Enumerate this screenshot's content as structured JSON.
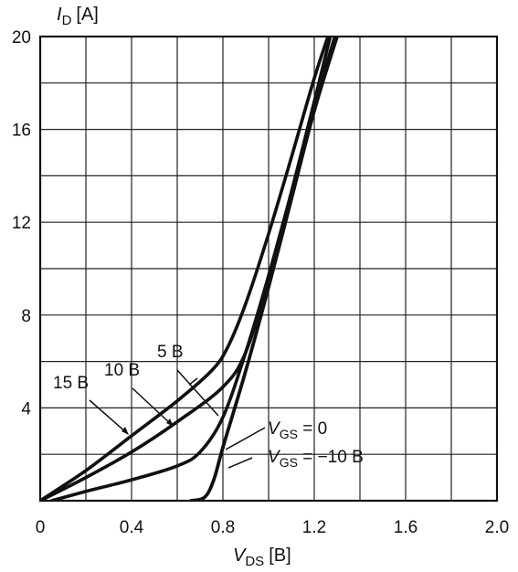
{
  "chart_data": {
    "type": "line",
    "title": "",
    "ylabel": {
      "main": "I",
      "sub": "D",
      "unit": "[A]"
    },
    "xlabel": {
      "main": "V",
      "sub": "DS",
      "unit": "[B]"
    },
    "xlim": [
      0,
      2.0
    ],
    "ylim": [
      0,
      20
    ],
    "grid": true,
    "minor_grid_step": {
      "x": 0.2,
      "y": 2
    },
    "x_ticks": [
      {
        "value": 0,
        "label": "0"
      },
      {
        "value": 0.4,
        "label": "0.4"
      },
      {
        "value": 0.8,
        "label": "0.8"
      },
      {
        "value": 1.2,
        "label": "1.2"
      },
      {
        "value": 1.6,
        "label": "1.6"
      },
      {
        "value": 2.0,
        "label": "2.0"
      }
    ],
    "y_ticks": [
      {
        "value": 4,
        "label": "4"
      },
      {
        "value": 8,
        "label": "8"
      },
      {
        "value": 12,
        "label": "12"
      },
      {
        "value": 16,
        "label": "16"
      },
      {
        "value": 20,
        "label": "20"
      }
    ],
    "series": [
      {
        "name": "15 B",
        "points": [
          [
            0,
            0
          ],
          [
            0.2,
            1.3
          ],
          [
            0.4,
            2.8
          ],
          [
            0.6,
            4.3
          ],
          [
            0.75,
            5.6
          ],
          [
            0.82,
            6.6
          ],
          [
            0.9,
            8.5
          ],
          [
            1.0,
            11.5
          ],
          [
            1.1,
            14.8
          ],
          [
            1.2,
            18.2
          ],
          [
            1.26,
            20
          ]
        ]
      },
      {
        "name": "10 B",
        "points": [
          [
            0,
            0
          ],
          [
            0.2,
            1.0
          ],
          [
            0.4,
            2.1
          ],
          [
            0.6,
            3.4
          ],
          [
            0.8,
            4.9
          ],
          [
            0.9,
            6.4
          ],
          [
            1.0,
            9.6
          ],
          [
            1.1,
            13.3
          ],
          [
            1.2,
            17.2
          ],
          [
            1.27,
            20
          ]
        ]
      },
      {
        "name": "5 B",
        "points": [
          [
            0.05,
            0
          ],
          [
            0.2,
            0.4
          ],
          [
            0.4,
            0.9
          ],
          [
            0.6,
            1.5
          ],
          [
            0.7,
            2.1
          ],
          [
            0.8,
            3.6
          ],
          [
            0.9,
            6.4
          ],
          [
            1.0,
            9.7
          ],
          [
            1.1,
            13.3
          ],
          [
            1.2,
            17.0
          ],
          [
            1.29,
            20
          ]
        ]
      },
      {
        "name": "V_GS = 0",
        "points": [
          [
            0.66,
            0
          ],
          [
            0.72,
            0.15
          ],
          [
            0.76,
            0.9
          ],
          [
            0.8,
            2.3
          ],
          [
            0.9,
            5.6
          ],
          [
            1.0,
            9.2
          ],
          [
            1.1,
            13.0
          ],
          [
            1.2,
            16.8
          ],
          [
            1.3,
            20
          ]
        ]
      },
      {
        "name": "V_GS = -10 B",
        "points": [
          [
            0.66,
            0
          ],
          [
            0.72,
            0.15
          ],
          [
            0.76,
            0.9
          ],
          [
            0.8,
            2.3
          ],
          [
            0.9,
            5.6
          ],
          [
            1.0,
            9.2
          ],
          [
            1.1,
            13.0
          ],
          [
            1.2,
            16.8
          ],
          [
            1.3,
            20
          ]
        ]
      }
    ],
    "annotations": {
      "label_15": "15 B",
      "label_10": "10 B",
      "label_5": "5 B",
      "vgs0": {
        "main": "V",
        "sub": "GS",
        "rest": " = 0"
      },
      "vgs_neg10": {
        "main": "V",
        "sub": "GS",
        "rest": " = −10 B"
      }
    }
  }
}
